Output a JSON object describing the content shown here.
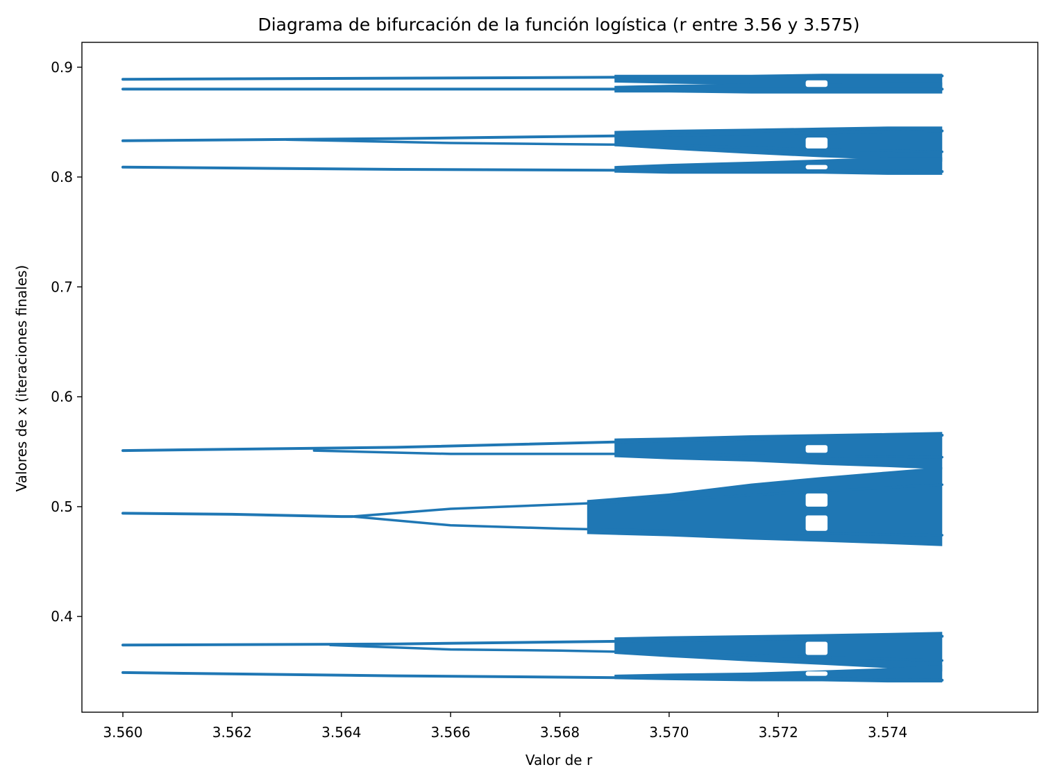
{
  "chart_data": {
    "type": "scatter",
    "title": "Diagrama de bifurcación de la función logística (r entre 3.56 y 3.575)",
    "xlabel": "Valor de r",
    "ylabel": "Valores de x (iteraciones finales)",
    "xlim": [
      3.55925,
      3.57675
    ],
    "ylim": [
      0.3129,
      0.9226
    ],
    "xticks": [
      {
        "value": 3.56,
        "label": "3.560"
      },
      {
        "value": 3.562,
        "label": "3.562"
      },
      {
        "value": 3.564,
        "label": "3.564"
      },
      {
        "value": 3.566,
        "label": "3.566"
      },
      {
        "value": 3.568,
        "label": "3.568"
      },
      {
        "value": 3.57,
        "label": "3.570"
      },
      {
        "value": 3.572,
        "label": "3.572"
      },
      {
        "value": 3.574,
        "label": "3.574"
      }
    ],
    "yticks": [
      {
        "value": 0.4,
        "label": "0.4"
      },
      {
        "value": 0.5,
        "label": "0.5"
      },
      {
        "value": 0.6,
        "label": "0.6"
      },
      {
        "value": 0.7,
        "label": "0.7"
      },
      {
        "value": 0.8,
        "label": "0.8"
      },
      {
        "value": 0.9,
        "label": "0.9"
      }
    ],
    "grid": false,
    "marker_color": "#1f77b4",
    "background_color": "#ffffff",
    "period8_branches": [
      {
        "x": [
          3.56,
          3.565,
          3.57,
          3.575
        ],
        "y": [
          0.889,
          0.89,
          0.891,
          0.892
        ]
      },
      {
        "x": [
          3.56,
          3.565,
          3.57,
          3.575
        ],
        "y": [
          0.88,
          0.88,
          0.88,
          0.88
        ]
      },
      {
        "x": [
          3.56,
          3.565,
          3.57,
          3.575
        ],
        "y": [
          0.833,
          0.835,
          0.838,
          0.842
        ]
      },
      {
        "x": [
          3.56,
          3.565,
          3.57,
          3.575
        ],
        "y": [
          0.809,
          0.807,
          0.806,
          0.805
        ]
      },
      {
        "x": [
          3.56,
          3.565,
          3.57,
          3.575
        ],
        "y": [
          0.551,
          0.554,
          0.56,
          0.565
        ]
      },
      {
        "x": [
          3.56,
          3.562,
          3.564,
          3.5642
        ],
        "y": [
          0.494,
          0.493,
          0.491,
          0.491
        ]
      },
      {
        "x": [
          3.56,
          3.565,
          3.57,
          3.575
        ],
        "y": [
          0.374,
          0.375,
          0.378,
          0.382
        ]
      },
      {
        "x": [
          3.56,
          3.565,
          3.57,
          3.575
        ],
        "y": [
          0.349,
          0.346,
          0.344,
          0.342
        ]
      }
    ],
    "period16_branches": [
      {
        "x": [
          3.5642,
          3.566,
          3.568,
          3.57,
          3.572,
          3.575
        ],
        "y": [
          0.491,
          0.498,
          0.502,
          0.506,
          0.512,
          0.52
        ]
      },
      {
        "x": [
          3.5642,
          3.566,
          3.568,
          3.57,
          3.572,
          3.575
        ],
        "y": [
          0.491,
          0.483,
          0.48,
          0.478,
          0.476,
          0.474
        ]
      },
      {
        "x": [
          3.5635,
          3.566,
          3.568,
          3.57,
          3.572,
          3.575
        ],
        "y": [
          0.551,
          0.548,
          0.548,
          0.548,
          0.546,
          0.545
        ]
      },
      {
        "x": [
          3.5638,
          3.566,
          3.568,
          3.57,
          3.572,
          3.575
        ],
        "y": [
          0.374,
          0.37,
          0.369,
          0.367,
          0.364,
          0.36
        ]
      },
      {
        "x": [
          3.563,
          3.566,
          3.568,
          3.57,
          3.572,
          3.575
        ],
        "y": [
          0.834,
          0.831,
          0.83,
          0.829,
          0.826,
          0.823
        ]
      }
    ],
    "chaotic_bands": [
      {
        "x": [
          3.5685,
          3.57,
          3.5715,
          3.5728,
          3.574,
          3.575
        ],
        "upper": [
          0.506,
          0.512,
          0.521,
          0.527,
          0.532,
          0.536
        ],
        "lower": [
          0.475,
          0.473,
          0.47,
          0.468,
          0.466,
          0.464
        ]
      },
      {
        "x": [
          3.569,
          3.57,
          3.5715,
          3.5728,
          3.574,
          3.575
        ],
        "upper": [
          0.562,
          0.563,
          0.565,
          0.566,
          0.567,
          0.568
        ],
        "lower": [
          0.545,
          0.543,
          0.541,
          0.538,
          0.536,
          0.534
        ]
      },
      {
        "x": [
          3.569,
          3.57,
          3.5715,
          3.5728,
          3.574,
          3.575
        ],
        "upper": [
          0.842,
          0.843,
          0.844,
          0.845,
          0.846,
          0.846
        ],
        "lower": [
          0.828,
          0.825,
          0.821,
          0.818,
          0.816,
          0.814
        ]
      },
      {
        "x": [
          3.569,
          3.57,
          3.5715,
          3.5728,
          3.574,
          3.575
        ],
        "upper": [
          0.81,
          0.812,
          0.814,
          0.816,
          0.818,
          0.818
        ],
        "lower": [
          0.804,
          0.803,
          0.803,
          0.803,
          0.802,
          0.802
        ]
      },
      {
        "x": [
          3.569,
          3.57,
          3.5715,
          3.5728,
          3.574,
          3.575
        ],
        "upper": [
          0.381,
          0.382,
          0.383,
          0.384,
          0.385,
          0.386
        ],
        "lower": [
          0.366,
          0.363,
          0.359,
          0.356,
          0.353,
          0.35
        ]
      },
      {
        "x": [
          3.569,
          3.57,
          3.5715,
          3.5728,
          3.574,
          3.575
        ],
        "upper": [
          0.347,
          0.348,
          0.349,
          0.351,
          0.353,
          0.356
        ],
        "lower": [
          0.343,
          0.342,
          0.341,
          0.341,
          0.34,
          0.34
        ]
      },
      {
        "x": [
          3.569,
          3.57,
          3.5715,
          3.5728,
          3.574,
          3.575
        ],
        "upper": [
          0.893,
          0.893,
          0.893,
          0.894,
          0.894,
          0.894
        ],
        "lower": [
          0.886,
          0.885,
          0.884,
          0.883,
          0.882,
          0.881
        ]
      },
      {
        "x": [
          3.569,
          3.57,
          3.5715,
          3.5728,
          3.574,
          3.575
        ],
        "upper": [
          0.883,
          0.884,
          0.885,
          0.885,
          0.886,
          0.886
        ],
        "lower": [
          0.877,
          0.877,
          0.876,
          0.876,
          0.876,
          0.876
        ]
      }
    ],
    "periodic_windows": [
      {
        "x_start": 3.5725,
        "x_end": 3.5729,
        "y_ranges": [
          [
            0.5,
            0.512
          ],
          [
            0.478,
            0.492
          ],
          [
            0.549,
            0.556
          ],
          [
            0.826,
            0.836
          ],
          [
            0.807,
            0.811
          ],
          [
            0.365,
            0.377
          ],
          [
            0.346,
            0.35
          ],
          [
            0.882,
            0.888
          ]
        ]
      }
    ]
  }
}
